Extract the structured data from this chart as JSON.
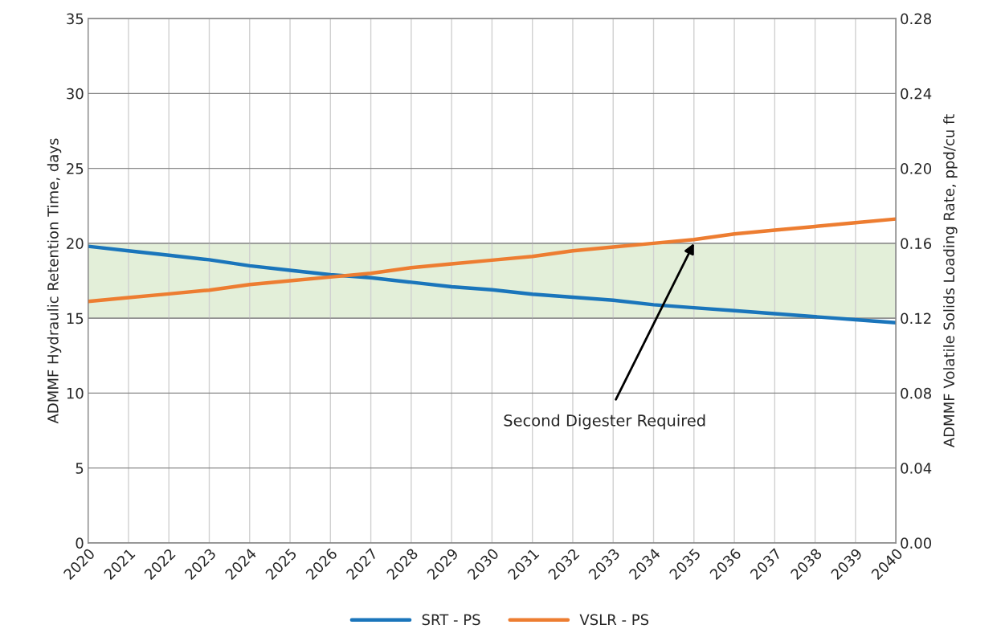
{
  "chart_data": {
    "type": "line",
    "x": [
      2020,
      2021,
      2022,
      2023,
      2024,
      2025,
      2026,
      2027,
      2028,
      2029,
      2030,
      2031,
      2032,
      2033,
      2034,
      2035,
      2036,
      2037,
      2038,
      2039,
      2040
    ],
    "series": [
      {
        "name": "SRT - PS",
        "color": "#1a75bb",
        "values": [
          19.8,
          19.5,
          19.2,
          18.9,
          18.5,
          18.2,
          17.9,
          17.7,
          17.4,
          17.1,
          16.9,
          16.6,
          16.4,
          16.2,
          15.9,
          15.7,
          15.5,
          15.3,
          15.1,
          14.9,
          14.7
        ]
      },
      {
        "name": "VSLR - PS",
        "color": "#ed7d31",
        "axis": "y2",
        "values": [
          0.129,
          0.131,
          0.133,
          0.135,
          0.138,
          0.14,
          0.142,
          0.144,
          0.147,
          0.149,
          0.151,
          0.153,
          0.156,
          0.158,
          0.16,
          0.162,
          0.165,
          0.167,
          0.169,
          0.171,
          0.173
        ]
      }
    ],
    "ylabel": "ADMMF Hydraulic Retention Time, days",
    "y2label": "ADMMF Volatile Solids Loading Rate, ppd/cu ft",
    "xlim": [
      2020,
      2040
    ],
    "xticks": [
      2020,
      2021,
      2022,
      2023,
      2024,
      2025,
      2026,
      2027,
      2028,
      2029,
      2030,
      2031,
      2032,
      2033,
      2034,
      2035,
      2036,
      2037,
      2038,
      2039,
      2040
    ],
    "ylim": [
      0,
      35
    ],
    "yticks": [
      0,
      5,
      10,
      15,
      20,
      25,
      30,
      35
    ],
    "y2lim": [
      0,
      0.28
    ],
    "y2ticks": [
      {
        "value": 0,
        "label": "0.00"
      },
      {
        "value": 0.04,
        "label": "0.04"
      },
      {
        "value": 0.08,
        "label": "0.08"
      },
      {
        "value": 0.12,
        "label": "0.12"
      },
      {
        "value": 0.16,
        "label": "0.16"
      },
      {
        "value": 0.2,
        "label": "0.20"
      },
      {
        "value": 0.24,
        "label": "0.24"
      },
      {
        "value": 0.28,
        "label": "0.28"
      }
    ],
    "bands": [
      {
        "axis": "y",
        "from": 15,
        "to": 20,
        "color": "#e3efd9"
      }
    ],
    "annotations": [
      {
        "text": "Second Digester Required",
        "x": 2035,
        "y": 20
      }
    ],
    "grid": true,
    "legend": "bottom",
    "marker": "none",
    "line_style": "solid"
  }
}
